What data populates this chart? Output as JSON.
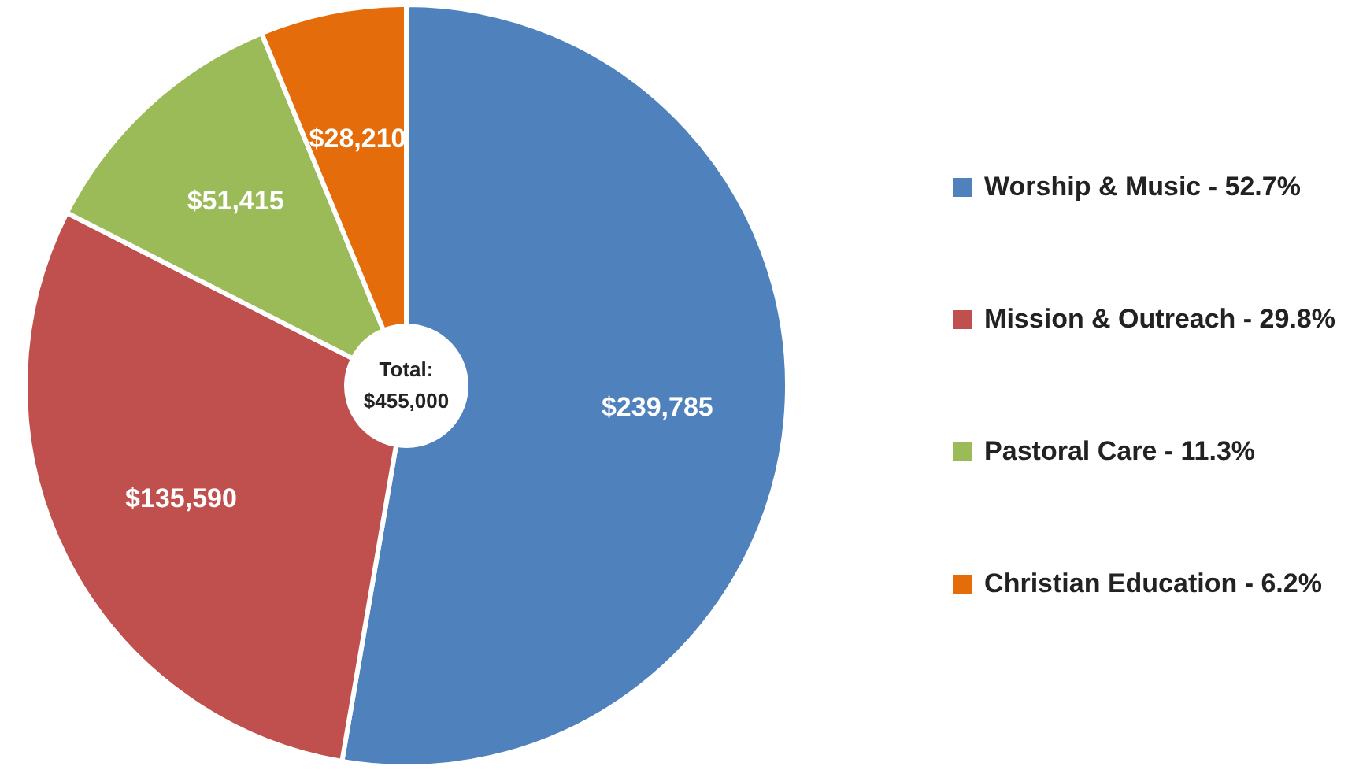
{
  "chart_data": {
    "type": "donut",
    "categories": [
      "Worship & Music - 52.7%",
      "Mission & Outreach - 29.8%",
      "Pastoral Care - 11.3%",
      "Christian Education - 6.2%"
    ],
    "values": [
      239785,
      135590,
      51415,
      28210
    ],
    "value_labels": [
      "$239,785",
      "$135,590",
      "$51,415",
      "$28,210"
    ],
    "colors": [
      "#4f81bd",
      "#c0504d",
      "#9bbb59",
      "#e46c0a"
    ],
    "annotations": [
      "Total: $455,000"
    ],
    "legend": "right"
  }
}
